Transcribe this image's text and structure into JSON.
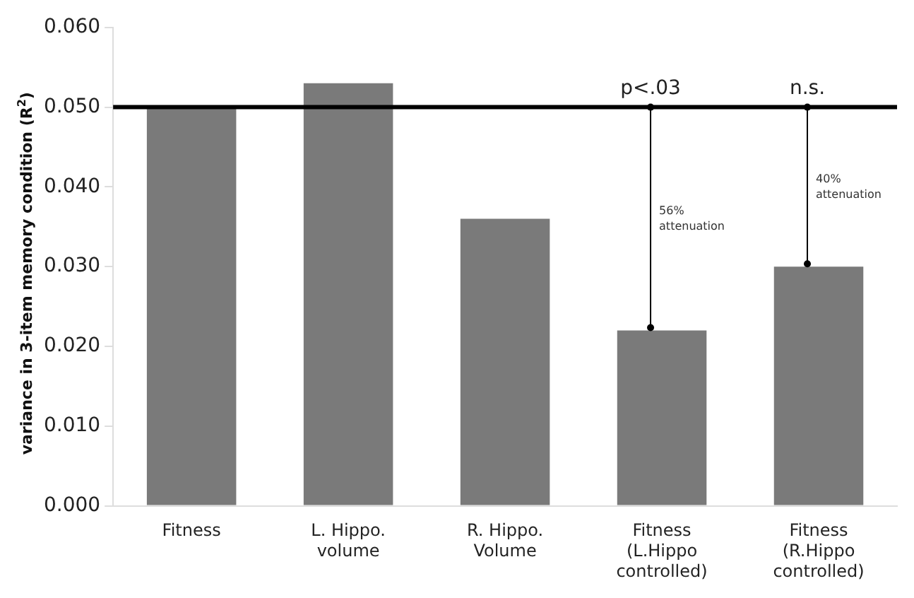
{
  "chart_data": {
    "type": "bar",
    "categories": [
      "Fitness",
      "L. Hippo.\nvolume",
      "R. Hippo.\nVolume",
      "Fitness\n(L.Hippo\ncontrolled)",
      "Fitness\n(R.Hippo\ncontrolled)"
    ],
    "values": [
      0.05,
      0.053,
      0.036,
      0.022,
      0.03
    ],
    "color": "#7a7a7a",
    "ylabel": "variance in 3-item memory condition (R$^{2}$)",
    "ylim": [
      0,
      0.06
    ],
    "yticks": [
      {
        "value": 0,
        "label": "0.000"
      },
      {
        "value": 0.01,
        "label": "0.010"
      },
      {
        "value": 0.02,
        "label": "0.020"
      },
      {
        "value": 0.03,
        "label": "0.030"
      },
      {
        "value": 0.04,
        "label": "0.040"
      },
      {
        "value": 0.05,
        "label": "0.050"
      },
      {
        "value": 0.06,
        "label": "0.060"
      }
    ],
    "ref_lines": [
      {
        "axis": "y",
        "value": 0.05,
        "color": "#000000"
      }
    ],
    "annotations": [
      {
        "text": "p<.03",
        "x": "Fitness\n(L.Hippo\ncontrolled)",
        "y": 0.05
      },
      {
        "text": "n.s.",
        "x": "Fitness\n(R.Hippo\ncontrolled)",
        "y": 0.05
      },
      "56%\nattenuation",
      "40%\nattenuation"
    ],
    "grid": false,
    "legend": false
  }
}
